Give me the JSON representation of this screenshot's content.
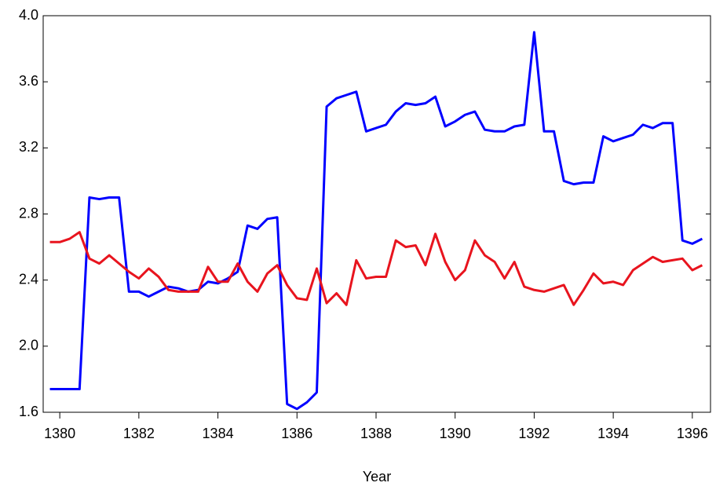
{
  "chart_data": {
    "type": "line",
    "x_label": "Year",
    "x": [
      1379.75,
      1380,
      1380.25,
      1380.5,
      1380.75,
      1381,
      1381.25,
      1381.5,
      1381.75,
      1382,
      1382.25,
      1382.5,
      1382.75,
      1383,
      1383.25,
      1383.5,
      1383.75,
      1384,
      1384.25,
      1384.5,
      1384.75,
      1385,
      1385.25,
      1385.5,
      1385.75,
      1386,
      1386.25,
      1386.5,
      1386.75,
      1387,
      1387.25,
      1387.5,
      1387.75,
      1388,
      1388.25,
      1388.5,
      1388.75,
      1389,
      1389.25,
      1389.5,
      1389.75,
      1390,
      1390.25,
      1390.5,
      1390.75,
      1391,
      1391.25,
      1391.5,
      1391.75,
      1392,
      1392.25,
      1392.5,
      1392.75,
      1393,
      1393.25,
      1393.5,
      1393.75,
      1394,
      1394.25,
      1394.5,
      1394.75,
      1395,
      1395.25,
      1395.5,
      1395.75,
      1396,
      1396.25
    ],
    "series": [
      {
        "color": "#0000ff",
        "values": [
          1.74,
          1.74,
          1.74,
          1.74,
          2.9,
          2.89,
          2.9,
          2.9,
          2.33,
          2.33,
          2.3,
          2.33,
          2.36,
          2.35,
          2.33,
          2.34,
          2.39,
          2.38,
          2.41,
          2.45,
          2.73,
          2.71,
          2.77,
          2.78,
          1.65,
          1.62,
          1.66,
          1.72,
          3.45,
          3.5,
          3.52,
          3.54,
          3.3,
          3.32,
          3.34,
          3.42,
          3.47,
          3.46,
          3.47,
          3.51,
          3.33,
          3.36,
          3.4,
          3.42,
          3.31,
          3.3,
          3.3,
          3.33,
          3.34,
          3.9,
          3.3,
          3.3,
          3.0,
          2.98,
          2.99,
          2.99,
          3.27,
          3.24,
          3.26,
          3.28,
          3.34,
          3.32,
          3.35,
          3.35,
          2.64,
          2.62,
          2.65
        ]
      },
      {
        "color": "#e8141e",
        "values": [
          2.63,
          2.63,
          2.65,
          2.69,
          2.53,
          2.5,
          2.55,
          2.5,
          2.45,
          2.41,
          2.47,
          2.42,
          2.34,
          2.33,
          2.33,
          2.33,
          2.48,
          2.39,
          2.39,
          2.5,
          2.39,
          2.33,
          2.44,
          2.49,
          2.37,
          2.29,
          2.28,
          2.47,
          2.26,
          2.32,
          2.25,
          2.52,
          2.41,
          2.42,
          2.42,
          2.64,
          2.6,
          2.61,
          2.49,
          2.68,
          2.51,
          2.4,
          2.46,
          2.64,
          2.55,
          2.51,
          2.41,
          2.51,
          2.36,
          2.34,
          2.33,
          2.35,
          2.37,
          2.25,
          2.34,
          2.44,
          2.38,
          2.39,
          2.37,
          2.46,
          2.5,
          2.54,
          2.51,
          2.52,
          2.53,
          2.46,
          2.49
        ]
      }
    ],
    "xlim": [
      1379.58,
      1396.46
    ],
    "xticks": [
      1380,
      1382,
      1384,
      1386,
      1388,
      1390,
      1392,
      1394,
      1396
    ],
    "ylim": [
      1.6,
      4.0
    ],
    "yticks": [
      {
        "value": 1.6,
        "label": "1.6"
      },
      {
        "value": 2.0,
        "label": "2.0"
      },
      2.4,
      2.8,
      3.2,
      3.6,
      {
        "value": 4.0,
        "label": "4.0"
      }
    ]
  }
}
